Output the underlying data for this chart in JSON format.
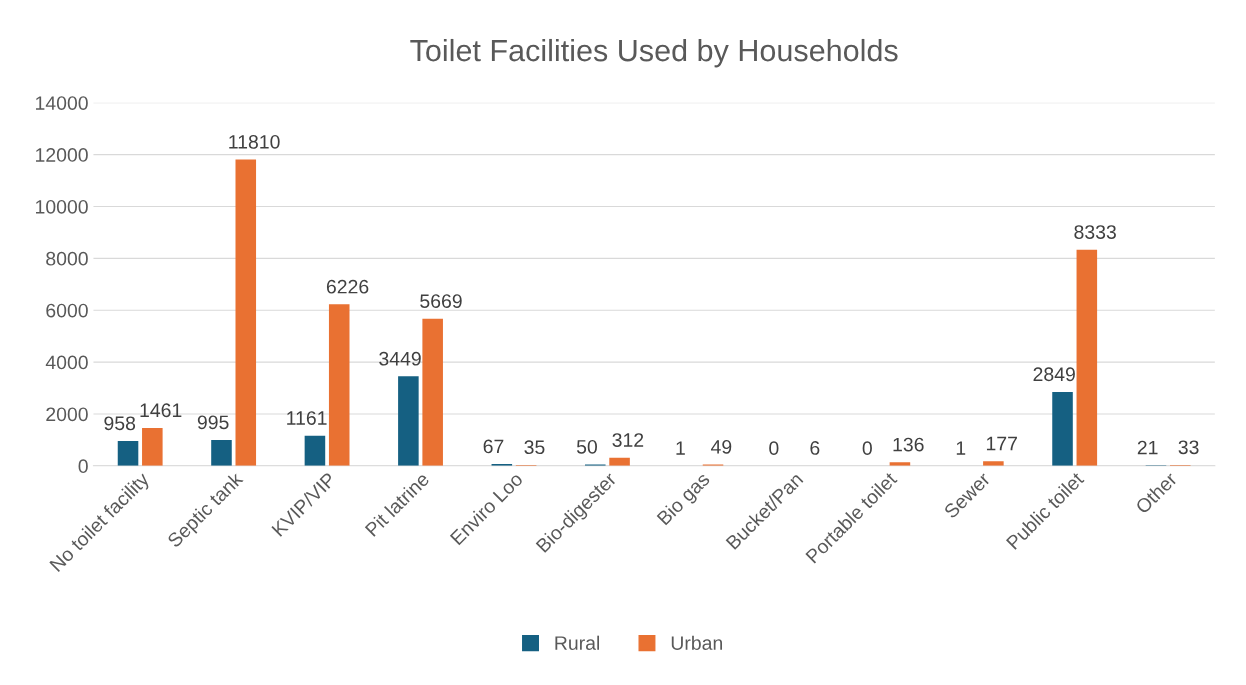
{
  "chart_data": {
    "type": "bar",
    "title": "Toilet Facilities Used by Households",
    "categories": [
      "No toilet facility",
      "Septic tank",
      "KVIP/VIP",
      "Pit latrine",
      "Enviro Loo",
      "Bio-digester",
      "Bio gas",
      "Bucket/Pan",
      "Portable toilet",
      "Sewer",
      "Public toilet",
      "Other"
    ],
    "series": [
      {
        "name": "Rural",
        "color": "#156082",
        "values": [
          958,
          995,
          1161,
          3449,
          67,
          50,
          1,
          0,
          0,
          1,
          2849,
          21
        ]
      },
      {
        "name": "Urban",
        "color": "#e97132",
        "values": [
          1461,
          11810,
          6226,
          5669,
          35,
          312,
          49,
          6,
          136,
          177,
          8333,
          33
        ]
      }
    ],
    "ylim": [
      0,
      14000
    ],
    "yticks": [
      0,
      2000,
      4000,
      6000,
      8000,
      10000,
      12000,
      14000
    ],
    "grid": "y",
    "legend": "bottom",
    "data_labels": true
  }
}
